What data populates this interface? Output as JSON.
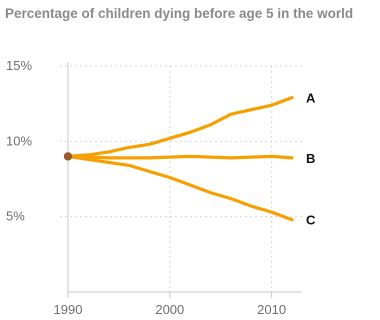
{
  "chart_data": {
    "type": "line",
    "title": "Percentage of children dying before age 5 in the world",
    "xlabel": "",
    "ylabel": "",
    "x_ticks": [
      1990,
      2000,
      2010
    ],
    "y_ticks": [
      5,
      10,
      15
    ],
    "y_tick_labels": [
      "5%",
      "10%",
      "15%"
    ],
    "xlim": [
      1990,
      2012
    ],
    "ylim": [
      0,
      15
    ],
    "grid": true,
    "start_marker": {
      "x": 1990,
      "y": 9.0
    },
    "series": [
      {
        "name": "A",
        "x": [
          1990,
          1992,
          1994,
          1996,
          1998,
          2000,
          2002,
          2004,
          2006,
          2008,
          2010,
          2012
        ],
        "values": [
          9.0,
          9.1,
          9.3,
          9.6,
          9.8,
          10.2,
          10.6,
          11.1,
          11.8,
          12.1,
          12.4,
          12.9
        ]
      },
      {
        "name": "B",
        "x": [
          1990,
          1994,
          1998,
          2002,
          2006,
          2010,
          2012
        ],
        "values": [
          9.0,
          8.9,
          8.9,
          9.0,
          8.9,
          9.0,
          8.9
        ]
      },
      {
        "name": "C",
        "x": [
          1990,
          1992,
          1994,
          1996,
          1998,
          2000,
          2002,
          2004,
          2006,
          2008,
          2010,
          2012
        ],
        "values": [
          9.0,
          8.8,
          8.6,
          8.4,
          8.0,
          7.6,
          7.1,
          6.6,
          6.2,
          5.7,
          5.3,
          4.8
        ]
      }
    ]
  },
  "colors": {
    "line": "#f5a000",
    "marker": "#9a5a2a",
    "grid": "#d7d7d7",
    "axis": "#c8c8c8"
  }
}
